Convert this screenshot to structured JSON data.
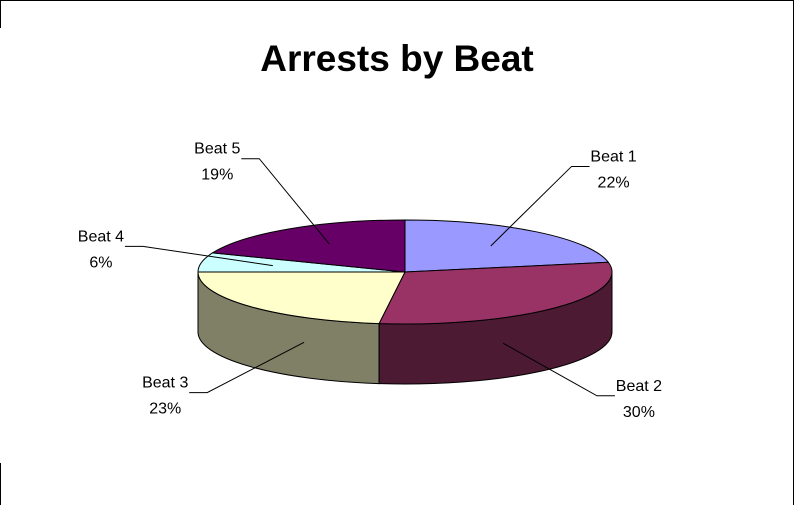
{
  "chart_data": {
    "type": "pie",
    "variant": "3d",
    "title": "Arrests by Beat",
    "legend": "none",
    "slices": [
      {
        "label": "Beat 1",
        "percent_label": "22%",
        "value": 22,
        "color": "#9999ff",
        "side_color": "#5c5c99"
      },
      {
        "label": "Beat 2",
        "percent_label": "30%",
        "value": 30,
        "color": "#993366",
        "side_color": "#4d1a33"
      },
      {
        "label": "Beat 3",
        "percent_label": "23%",
        "value": 23,
        "color": "#ffffcc",
        "side_color": "#808066"
      },
      {
        "label": "Beat 4",
        "percent_label": "6%",
        "value": 6,
        "color": "#ccffff",
        "side_color": "#668080"
      },
      {
        "label": "Beat 5",
        "percent_label": "19%",
        "value": 19,
        "color": "#660066",
        "side_color": "#330033"
      }
    ]
  }
}
